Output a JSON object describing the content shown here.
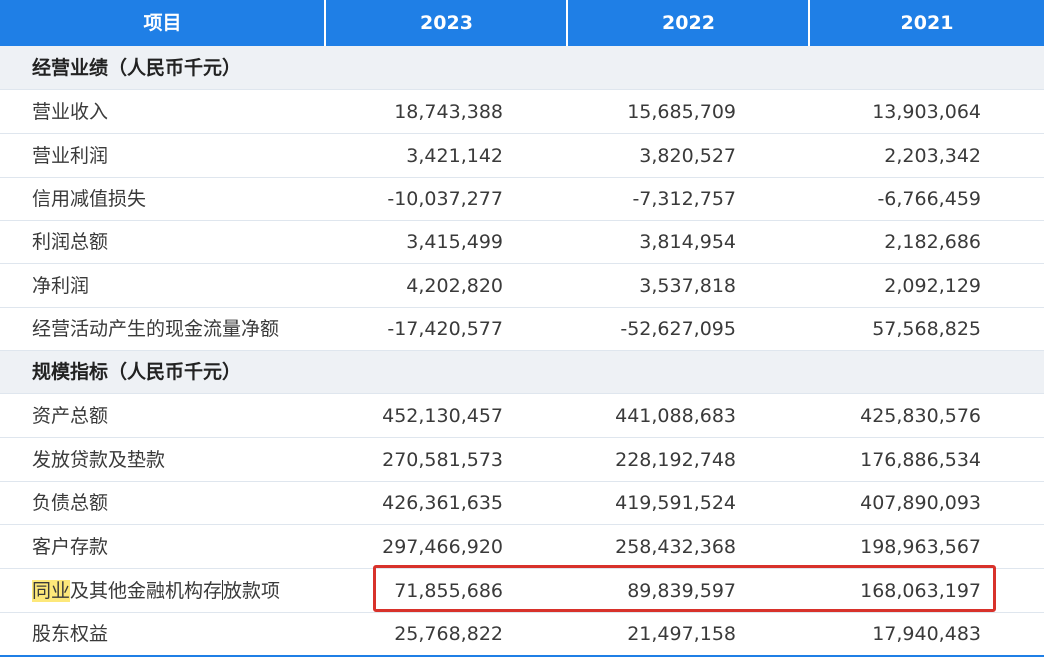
{
  "header": {
    "item": "项目",
    "y2023": "2023",
    "y2022": "2022",
    "y2021": "2021"
  },
  "sections": [
    {
      "title": "经营业绩（人民币千元）",
      "rows": [
        {
          "label": "营业收入",
          "v2023": "18,743,388",
          "v2022": "15,685,709",
          "v2021": "13,903,064"
        },
        {
          "label": "营业利润",
          "v2023": "3,421,142",
          "v2022": "3,820,527",
          "v2021": "2,203,342"
        },
        {
          "label": "信用减值损失",
          "v2023": "-10,037,277",
          "v2022": "-7,312,757",
          "v2021": "-6,766,459"
        },
        {
          "label": "利润总额",
          "v2023": "3,415,499",
          "v2022": "3,814,954",
          "v2021": "2,182,686"
        },
        {
          "label": "净利润",
          "v2023": "4,202,820",
          "v2022": "3,537,818",
          "v2021": "2,092,129"
        },
        {
          "label": "经营活动产生的现金流量净额",
          "v2023": "-17,420,577",
          "v2022": "-52,627,095",
          "v2021": "57,568,825"
        }
      ]
    },
    {
      "title": "规模指标（人民币千元）",
      "rows": [
        {
          "label": "资产总额",
          "v2023": "452,130,457",
          "v2022": "441,088,683",
          "v2021": "425,830,576"
        },
        {
          "label": "发放贷款及垫款",
          "v2023": "270,581,573",
          "v2022": "228,192,748",
          "v2021": "176,886,534"
        },
        {
          "label": "负债总额",
          "v2023": "426,361,635",
          "v2022": "419,591,524",
          "v2021": "407,890,093"
        },
        {
          "label": "客户存款",
          "v2023": "297,466,920",
          "v2022": "258,432,368",
          "v2021": "198,963,567"
        },
        {
          "label_highlight": "同业",
          "label_mid": "及其他金融机构存",
          "label_rest": "放款项",
          "v2023": "71,855,686",
          "v2022": "89,839,597",
          "v2021": "168,063,197"
        },
        {
          "label": "股东权益",
          "v2023": "25,768,822",
          "v2022": "21,497,158",
          "v2021": "17,940,483"
        }
      ]
    }
  ]
}
